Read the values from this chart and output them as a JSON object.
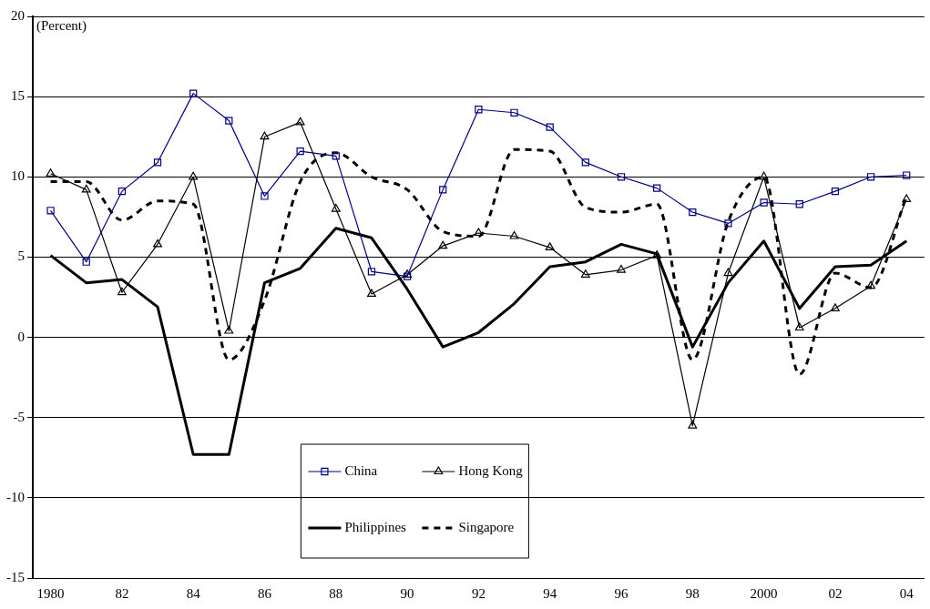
{
  "chart_data": {
    "type": "line",
    "ylabel": "(Percent)",
    "categories": [
      "1980",
      null,
      "82",
      null,
      "84",
      null,
      "86",
      null,
      "88",
      null,
      "90",
      null,
      "92",
      null,
      "94",
      null,
      "96",
      null,
      "98",
      null,
      "2000",
      null,
      "02",
      null,
      "04"
    ],
    "ylim": [
      -15,
      20
    ],
    "yticks": [
      -15,
      -10,
      -5,
      0,
      5,
      10,
      15,
      20
    ],
    "grid": "y",
    "legend": "bottom",
    "series": [
      {
        "name": "China",
        "color": "#000080",
        "marker": "square",
        "line_style": "solid",
        "values": [
          7.9,
          4.7,
          9.1,
          10.9,
          15.2,
          13.5,
          8.8,
          11.6,
          11.3,
          4.1,
          3.8,
          9.2,
          14.2,
          14.0,
          13.1,
          10.9,
          10.0,
          9.3,
          7.8,
          7.1,
          8.4,
          8.3,
          9.1,
          10.0,
          10.1
        ]
      },
      {
        "name": "Hong Kong",
        "color": "#000000",
        "marker": "triangle",
        "line_style": "solid",
        "values": [
          10.2,
          9.2,
          2.8,
          5.8,
          10.0,
          0.4,
          12.5,
          13.4,
          8.0,
          2.7,
          3.9,
          5.7,
          6.5,
          6.3,
          5.6,
          3.9,
          4.2,
          5.1,
          -5.5,
          4.0,
          10.0,
          0.6,
          1.8,
          3.2,
          8.6
        ]
      },
      {
        "name": "Philippines",
        "color": "#000000",
        "marker": "none",
        "line_style": "solid",
        "values": [
          5.1,
          3.4,
          3.6,
          1.9,
          -7.3,
          -7.3,
          3.4,
          4.3,
          6.8,
          6.2,
          3.0,
          -0.6,
          0.3,
          2.1,
          4.4,
          4.7,
          5.8,
          5.2,
          -0.6,
          3.4,
          6.0,
          1.8,
          4.4,
          4.5,
          6.0
        ]
      },
      {
        "name": "Singapore",
        "color": "#000000",
        "marker": "none",
        "line_style": "dashed",
        "values": [
          9.7,
          9.7,
          7.3,
          8.5,
          8.3,
          -1.4,
          2.3,
          9.7,
          11.5,
          10.0,
          9.2,
          6.6,
          6.3,
          11.7,
          11.6,
          8.1,
          7.8,
          8.3,
          -1.4,
          7.2,
          10.0,
          -2.3,
          4.0,
          3.1,
          8.8
        ]
      }
    ]
  }
}
